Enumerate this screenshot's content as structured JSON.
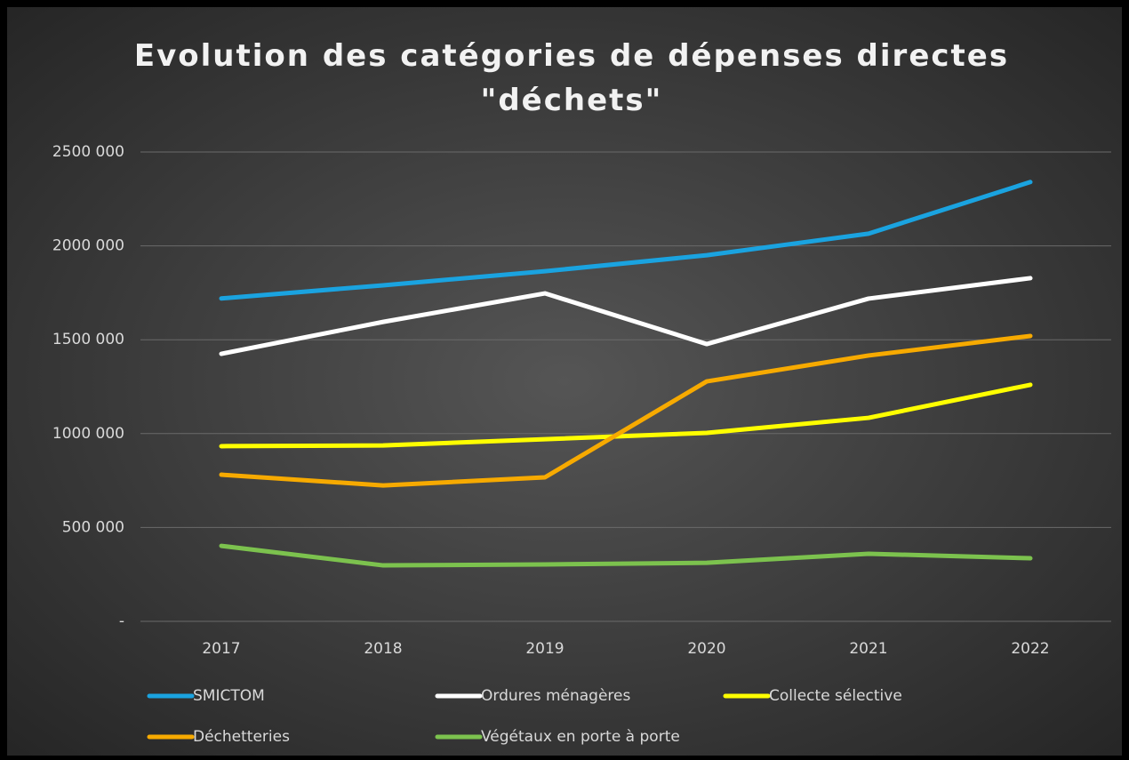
{
  "chart_data": {
    "type": "line",
    "title": "Evolution des catégories de dépenses directes \"déchets\"",
    "categories": [
      "2017",
      "2018",
      "2019",
      "2020",
      "2021",
      "2022"
    ],
    "series": [
      {
        "name": "SMICTOM",
        "color": "#1aa3e0",
        "values": [
          1720000,
          1790000,
          1865000,
          1950000,
          2065000,
          2340000
        ]
      },
      {
        "name": "Ordures ménagères",
        "color": "#ffffff",
        "values": [
          1425000,
          1595000,
          1747000,
          1477000,
          1719000,
          1828000
        ]
      },
      {
        "name": "Collecte sélective",
        "color": "#ffff00",
        "values": [
          933000,
          937000,
          970000,
          1004000,
          1084000,
          1260000
        ]
      },
      {
        "name": "Déchetteries",
        "color": "#f7aa00",
        "values": [
          781000,
          724000,
          767000,
          1278000,
          1416000,
          1520000
        ]
      },
      {
        "name": "Végétaux en porte à porte",
        "color": "#7cc24e",
        "values": [
          402000,
          298000,
          303000,
          312000,
          360000,
          336000
        ]
      }
    ],
    "ylim": [
      0,
      2500000
    ],
    "yticks": [
      {
        "value": 0,
        "label": "-"
      },
      {
        "value": 500000,
        "label": "500 000"
      },
      {
        "value": 1000000,
        "label": "1000 000"
      },
      {
        "value": 1500000,
        "label": "1500 000"
      },
      {
        "value": 2000000,
        "label": "2000 000"
      },
      {
        "value": 2500000,
        "label": "2500 000"
      }
    ],
    "grid": true,
    "legend": "bottom"
  }
}
